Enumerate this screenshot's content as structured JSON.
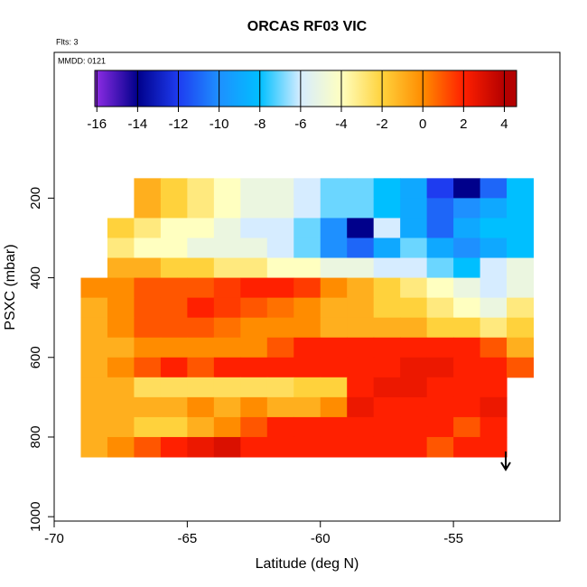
{
  "chart_data": {
    "type": "heatmap",
    "title": "ORCAS RF03 VIC",
    "annotations": [
      "Flts: 3",
      "MMDD: 0121"
    ],
    "x_label": "Latitude (deg N)",
    "y_label": "PSXC (mbar)",
    "xlim": [
      -70,
      -51
    ],
    "ylim": [
      1011,
      -166
    ],
    "xticks": [
      -70,
      -65,
      -60,
      -55
    ],
    "yticks": [
      200,
      400,
      600,
      800,
      1000
    ],
    "x": [
      -68.5,
      -67.5,
      -66.5,
      -65.5,
      -64.5,
      -63.5,
      -62.5,
      -61.5,
      -60.5,
      -59.5,
      -58.5,
      -57.5,
      -56.5,
      -55.5,
      -54.5,
      -53.5,
      -52.5
    ],
    "y": [
      175,
      225,
      275,
      325,
      375,
      425,
      475,
      525,
      575,
      625,
      675,
      725,
      775,
      825
    ],
    "z": [
      [
        null,
        null,
        -1,
        -2,
        -3,
        -4,
        -5,
        -5,
        -6,
        -7,
        -7,
        -8,
        -9,
        -12,
        -14,
        -11,
        -8
      ],
      [
        null,
        null,
        -1,
        -2,
        -3,
        -4,
        -5,
        -5,
        -6,
        -7,
        -7,
        -8,
        -9,
        -11,
        -10,
        -9,
        -8
      ],
      [
        null,
        -2,
        -3,
        -4,
        -4,
        -5,
        -6,
        -6,
        -7,
        -10,
        -14,
        -6,
        -9,
        -11,
        -9,
        -8,
        -8
      ],
      [
        null,
        -3,
        -4,
        -4,
        -5,
        -5,
        -5,
        -6,
        -7,
        -10,
        -11,
        -9,
        -7,
        -9,
        -10,
        -9,
        -8
      ],
      [
        null,
        -1,
        -1,
        -2,
        -2,
        -3,
        -3,
        -4,
        -4,
        -5,
        -5,
        -6,
        -6,
        -7,
        -8,
        -6,
        -5
      ],
      [
        0,
        0,
        1,
        1,
        1,
        1.5,
        2,
        2,
        1.5,
        0,
        -1,
        -2,
        -3,
        -4,
        -5,
        -6,
        -5
      ],
      [
        -1,
        0,
        1,
        1,
        2,
        1.5,
        1,
        0.5,
        0,
        -1,
        -1,
        -2,
        -2,
        -3,
        -4,
        -5,
        -3
      ],
      [
        -1,
        0,
        1,
        1,
        1,
        0.5,
        0,
        0,
        0,
        -1,
        -1,
        -1,
        -1,
        -2,
        -2,
        -3,
        -2
      ],
      [
        -1,
        -1,
        0,
        0,
        0,
        0,
        0,
        1,
        2,
        2,
        2,
        2,
        2,
        2,
        2,
        1,
        -1
      ],
      [
        -1,
        0,
        1,
        2,
        1,
        2,
        2,
        2,
        2,
        2,
        2,
        2,
        2.5,
        2.5,
        2,
        2,
        1
      ],
      [
        -1,
        -1,
        -2.5,
        -2.5,
        -2.5,
        -2.5,
        -2.5,
        -2.5,
        -2,
        -2,
        2,
        2.5,
        2.5,
        2,
        2,
        2,
        null
      ],
      [
        -1,
        -1,
        -1,
        -1,
        0,
        -1,
        0,
        -1,
        -1,
        0,
        2.5,
        2,
        2,
        2,
        2,
        2.5,
        null
      ],
      [
        -1,
        -1,
        -2,
        -2,
        -1,
        0,
        1,
        2,
        2,
        2,
        2,
        2,
        2,
        2,
        1,
        2,
        null
      ],
      [
        -1,
        0,
        1,
        2,
        2.5,
        3,
        2,
        2,
        2,
        2,
        2,
        2,
        2,
        1,
        2,
        2,
        null
      ]
    ],
    "zlim": [
      -16.1,
      4.6
    ],
    "zticks": [
      -16,
      -14,
      -12,
      -10,
      -8,
      -6,
      -4,
      -2,
      0,
      2,
      4
    ],
    "colors": [
      "#8a2be2",
      "#00008b",
      "#1e3cf0",
      "#1e90ff",
      "#00bfff",
      "#d6ecff",
      "#ffffc0",
      "#ffd23c",
      "#ff8c00",
      "#ff2000",
      "#b40000"
    ]
  }
}
